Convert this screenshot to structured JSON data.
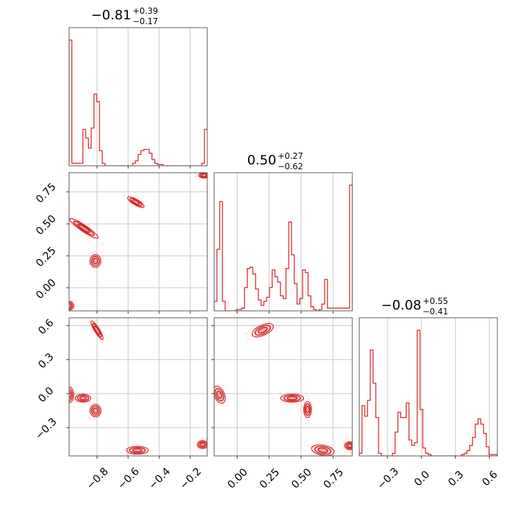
{
  "chart_data": {
    "type": "corner",
    "color": "#d62728",
    "parameters": [
      {
        "title": {
          "median": "−0.81",
          "plus": "+0.39",
          "minus": "−0.17"
        },
        "range": [
          -0.98,
          -0.09
        ],
        "ticks": [
          -0.8,
          -0.6,
          -0.4,
          -0.2
        ],
        "tick_labels": [
          "−0.8",
          "−0.6",
          "−0.4",
          "−0.2"
        ],
        "hist": {
          "edges_start": -0.98,
          "bin_width": 0.0178,
          "counts": [
            1.0,
            0.02,
            0.02,
            0.02,
            0.02,
            0.29,
            0.22,
            0.14,
            0.3,
            0.57,
            0.51,
            0.12,
            0.02,
            0,
            0,
            0,
            0,
            0,
            0,
            0,
            0,
            0,
            0,
            0.02,
            0.04,
            0.09,
            0.12,
            0.13,
            0.13,
            0.1,
            0.05,
            0.02,
            0.01,
            0.01,
            0,
            0,
            0,
            0,
            0,
            0,
            0,
            0,
            0,
            0,
            0,
            0,
            0,
            0,
            0.02,
            0.29,
            0.27,
            0.11
          ]
        }
      },
      {
        "title": {
          "median": "0.50",
          "plus": "+0.27",
          "minus": "−0.62"
        },
        "range": [
          -0.18,
          0.9
        ],
        "ticks": [
          0.0,
          0.25,
          0.5,
          0.75
        ],
        "tick_labels": [
          "0.00",
          "0.25",
          "0.50",
          "0.75"
        ],
        "hist": {
          "edges_start": -0.18,
          "bin_width": 0.0216,
          "counts": [
            0.07,
            0.45,
            0.8,
            0.07,
            0,
            0,
            0,
            0,
            0.01,
            0.01,
            0.02,
            0.17,
            0.31,
            0.32,
            0.27,
            0.16,
            0.08,
            0.04,
            0.07,
            0.1,
            0.17,
            0.3,
            0.25,
            0.21,
            0.11,
            0.09,
            0.31,
            0.65,
            0.41,
            0.2,
            0.05,
            0.09,
            0.3,
            0.28,
            0.11,
            0.03,
            0.01,
            0,
            0.01,
            0.05,
            0.23,
            0.02,
            0.02,
            0.02,
            0.02,
            0.02,
            0.02,
            0.02,
            0.02,
            0.92
          ]
        }
      },
      {
        "title": {
          "median": "−0.08",
          "plus": "+0.55",
          "minus": "−0.41"
        },
        "range": [
          -0.55,
          0.67
        ],
        "ticks": [
          -0.3,
          0.0,
          0.3,
          0.6
        ],
        "tick_labels": [
          "−0.3",
          "0.0",
          "0.3",
          "0.6"
        ],
        "hist": {
          "edges_start": -0.55,
          "bin_width": 0.0244,
          "counts": [
            0.02,
            0.38,
            0.3,
            0.42,
            0.8,
            0.55,
            0.29,
            0.02,
            0,
            0,
            0,
            0,
            0.02,
            0.18,
            0.33,
            0.29,
            0.29,
            0.4,
            0.12,
            0.08,
            0.1,
            0.95,
            0.35,
            0.06,
            0.02,
            0.01,
            0,
            0,
            0,
            0,
            0,
            0,
            0,
            0,
            0,
            0,
            0,
            0.01,
            0.02,
            0.04,
            0.08,
            0.14,
            0.24,
            0.28,
            0.24,
            0.17,
            0.07,
            0.01,
            0.01,
            0.01
          ]
        }
      }
    ],
    "panels_2d": [
      {
        "row": 1,
        "col": 0,
        "x_param": 0,
        "y_param": 1,
        "y_ticks": [
          0.0,
          0.25,
          0.5,
          0.75
        ],
        "y_tick_labels": [
          "0.00",
          "0.25",
          "0.50",
          "0.75"
        ],
        "blobs": [
          {
            "cx": -0.885,
            "cy": 0.465,
            "rx": 0.11,
            "ry": 0.025,
            "angle_deg": -34
          },
          {
            "cx": -0.81,
            "cy": 0.21,
            "rx": 0.035,
            "ry": 0.05,
            "angle_deg": 0
          },
          {
            "cx": -0.55,
            "cy": 0.67,
            "rx": 0.06,
            "ry": 0.022,
            "angle_deg": -30
          },
          {
            "cx": -0.11,
            "cy": 0.88,
            "rx": 0.035,
            "ry": 0.022,
            "angle_deg": 0
          },
          {
            "cx": -0.98,
            "cy": -0.14,
            "rx": 0.03,
            "ry": 0.035,
            "angle_deg": 0
          }
        ]
      },
      {
        "row": 2,
        "col": 0,
        "x_param": 0,
        "y_param": 2,
        "y_ticks": [
          -0.3,
          0.0,
          0.3,
          0.6
        ],
        "y_tick_labels": [
          "−0.3",
          "0.0",
          "0.3",
          "0.6"
        ],
        "blobs": [
          {
            "cx": -0.8,
            "cy": 0.56,
            "rx": 0.07,
            "ry": 0.022,
            "angle_deg": -58
          },
          {
            "cx": -0.98,
            "cy": -0.01,
            "rx": 0.03,
            "ry": 0.07,
            "angle_deg": 0
          },
          {
            "cx": -0.89,
            "cy": -0.04,
            "rx": 0.05,
            "ry": 0.035,
            "angle_deg": 0
          },
          {
            "cx": -0.81,
            "cy": -0.15,
            "rx": 0.035,
            "ry": 0.055,
            "angle_deg": 0
          },
          {
            "cx": -0.54,
            "cy": -0.5,
            "rx": 0.07,
            "ry": 0.035,
            "angle_deg": 0
          },
          {
            "cx": -0.12,
            "cy": -0.45,
            "rx": 0.035,
            "ry": 0.035,
            "angle_deg": 0
          }
        ]
      },
      {
        "row": 2,
        "col": 1,
        "x_param": 1,
        "y_param": 2,
        "y_ticks": [
          -0.3,
          0.0,
          0.3,
          0.6
        ],
        "y_tick_labels": [],
        "blobs": [
          {
            "cx": 0.2,
            "cy": 0.56,
            "rx": 0.09,
            "ry": 0.045,
            "angle_deg": 25
          },
          {
            "cx": -0.14,
            "cy": -0.01,
            "rx": 0.04,
            "ry": 0.08,
            "angle_deg": 25
          },
          {
            "cx": 0.43,
            "cy": -0.04,
            "rx": 0.09,
            "ry": 0.035,
            "angle_deg": 0
          },
          {
            "cx": 0.55,
            "cy": -0.14,
            "rx": 0.03,
            "ry": 0.07,
            "angle_deg": 0
          },
          {
            "cx": 0.67,
            "cy": -0.5,
            "rx": 0.09,
            "ry": 0.045,
            "angle_deg": -10
          },
          {
            "cx": 0.88,
            "cy": -0.46,
            "rx": 0.04,
            "ry": 0.035,
            "angle_deg": 0
          }
        ]
      }
    ]
  }
}
